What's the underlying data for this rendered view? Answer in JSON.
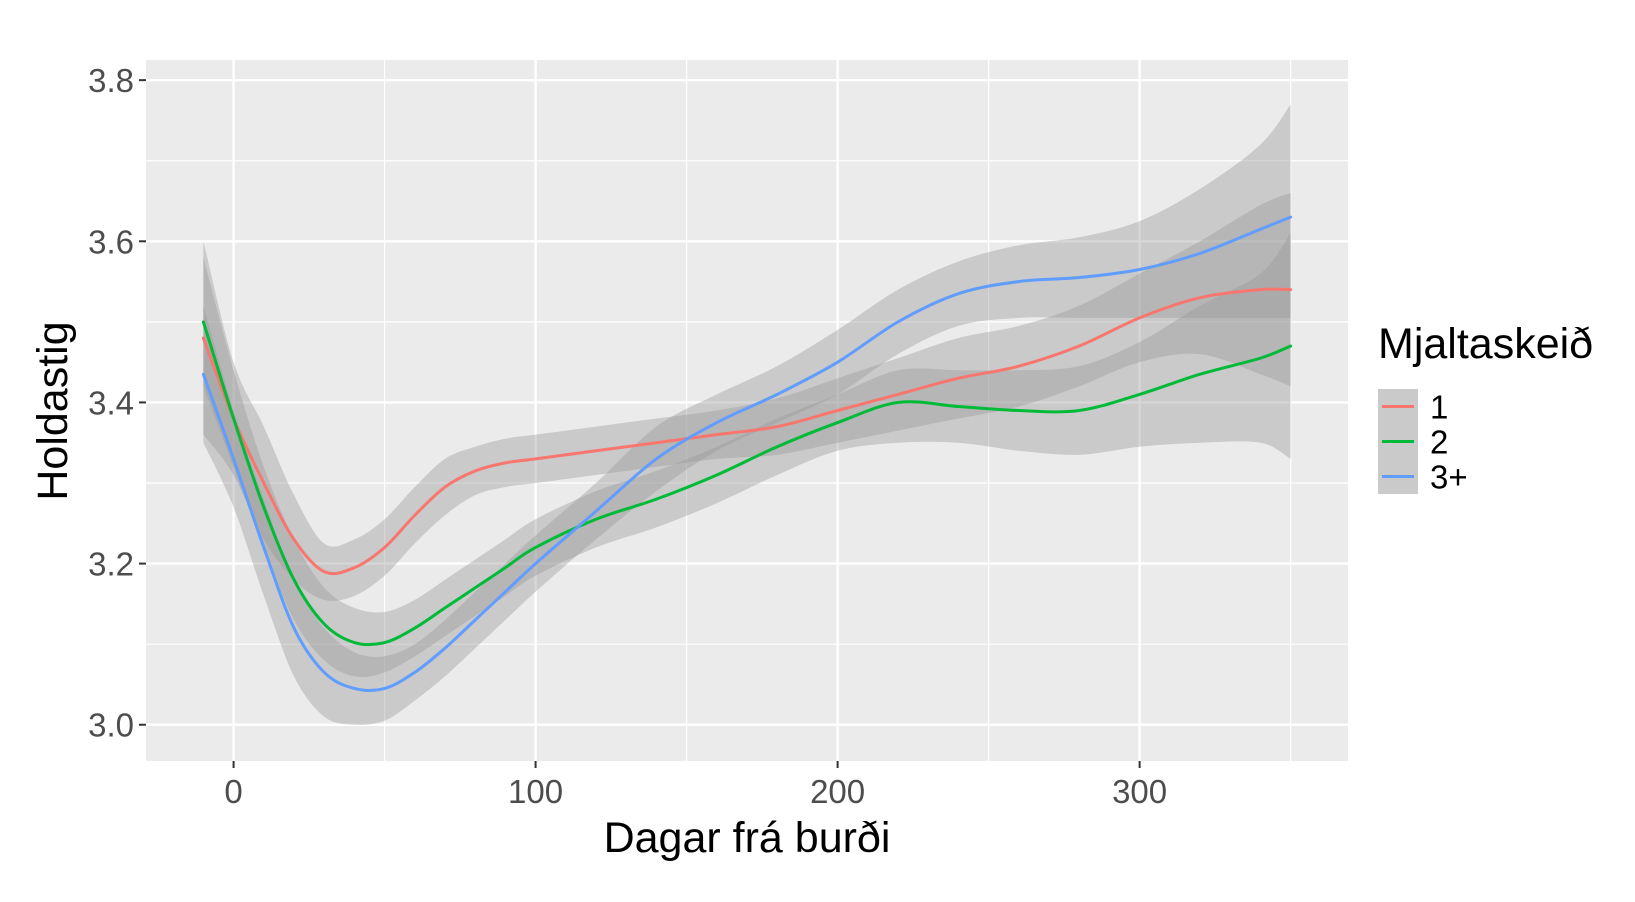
{
  "chart_data": {
    "type": "line",
    "xlabel": "Dagar frá burði",
    "ylabel": "Holdastig",
    "xlim": [
      -29,
      369
    ],
    "ylim": [
      2.955,
      3.825
    ],
    "x_ticks": [
      0,
      100,
      200,
      300
    ],
    "y_ticks": [
      3.0,
      3.2,
      3.4,
      3.6,
      3.8
    ],
    "y_tick_labels": [
      "3.0",
      "3.2",
      "3.4",
      "3.6",
      "3.8"
    ],
    "grid": true,
    "panel_background": "#ebebeb",
    "grid_color": "#ffffff",
    "ribbon_color": "#999999",
    "legend": {
      "title": "Mjaltaskeið",
      "position": "right"
    },
    "series": [
      {
        "name": "1",
        "color": "#f8766d",
        "x": [
          -10,
          0,
          10,
          20,
          30,
          40,
          50,
          60,
          70,
          80,
          90,
          100,
          120,
          140,
          160,
          180,
          200,
          220,
          240,
          260,
          280,
          300,
          320,
          340,
          350
        ],
        "y": [
          3.48,
          3.38,
          3.3,
          3.23,
          3.19,
          3.195,
          3.22,
          3.26,
          3.295,
          3.315,
          3.325,
          3.33,
          3.34,
          3.35,
          3.36,
          3.37,
          3.39,
          3.41,
          3.43,
          3.445,
          3.47,
          3.505,
          3.53,
          3.54,
          3.54
        ],
        "lower": [
          3.36,
          3.31,
          3.23,
          3.18,
          3.155,
          3.16,
          3.185,
          3.225,
          3.26,
          3.285,
          3.295,
          3.3,
          3.31,
          3.32,
          3.33,
          3.335,
          3.35,
          3.365,
          3.38,
          3.395,
          3.42,
          3.45,
          3.46,
          3.435,
          3.42
        ],
        "upper": [
          3.6,
          3.45,
          3.37,
          3.285,
          3.225,
          3.23,
          3.255,
          3.295,
          3.33,
          3.345,
          3.355,
          3.36,
          3.37,
          3.38,
          3.39,
          3.405,
          3.43,
          3.455,
          3.48,
          3.495,
          3.52,
          3.56,
          3.6,
          3.645,
          3.66
        ]
      },
      {
        "name": "2",
        "color": "#00ba38",
        "x": [
          -10,
          0,
          10,
          20,
          30,
          40,
          50,
          60,
          70,
          80,
          90,
          100,
          120,
          140,
          160,
          180,
          200,
          220,
          240,
          260,
          280,
          300,
          320,
          340,
          350
        ],
        "y": [
          3.5,
          3.38,
          3.27,
          3.18,
          3.125,
          3.102,
          3.102,
          3.12,
          3.145,
          3.17,
          3.195,
          3.22,
          3.255,
          3.28,
          3.31,
          3.345,
          3.375,
          3.4,
          3.395,
          3.39,
          3.39,
          3.41,
          3.435,
          3.455,
          3.47
        ],
        "lower": [
          3.42,
          3.32,
          3.22,
          3.13,
          3.08,
          3.06,
          3.065,
          3.085,
          3.11,
          3.135,
          3.16,
          3.185,
          3.22,
          3.245,
          3.275,
          3.31,
          3.34,
          3.35,
          3.35,
          3.34,
          3.335,
          3.345,
          3.35,
          3.35,
          3.33
        ],
        "upper": [
          3.58,
          3.44,
          3.32,
          3.23,
          3.17,
          3.145,
          3.14,
          3.155,
          3.18,
          3.205,
          3.23,
          3.255,
          3.29,
          3.315,
          3.345,
          3.38,
          3.41,
          3.44,
          3.44,
          3.44,
          3.445,
          3.475,
          3.52,
          3.56,
          3.61
        ]
      },
      {
        "name": "3+",
        "color": "#619cff",
        "x": [
          -10,
          0,
          10,
          20,
          30,
          40,
          50,
          60,
          70,
          80,
          90,
          100,
          120,
          140,
          160,
          180,
          200,
          220,
          240,
          260,
          280,
          300,
          320,
          340,
          350
        ],
        "y": [
          3.435,
          3.33,
          3.22,
          3.12,
          3.065,
          3.045,
          3.045,
          3.065,
          3.095,
          3.13,
          3.165,
          3.2,
          3.265,
          3.33,
          3.375,
          3.41,
          3.45,
          3.5,
          3.535,
          3.55,
          3.555,
          3.565,
          3.585,
          3.615,
          3.63
        ],
        "lower": [
          3.35,
          3.27,
          3.16,
          3.06,
          3.01,
          3.0,
          3.005,
          3.03,
          3.06,
          3.095,
          3.13,
          3.165,
          3.23,
          3.29,
          3.34,
          3.375,
          3.41,
          3.46,
          3.495,
          3.505,
          3.505,
          3.505,
          3.505,
          3.505,
          3.505
        ],
        "upper": [
          3.52,
          3.39,
          3.28,
          3.18,
          3.12,
          3.09,
          3.085,
          3.1,
          3.13,
          3.165,
          3.2,
          3.235,
          3.3,
          3.37,
          3.41,
          3.445,
          3.49,
          3.54,
          3.575,
          3.595,
          3.605,
          3.625,
          3.665,
          3.72,
          3.77
        ]
      }
    ]
  }
}
